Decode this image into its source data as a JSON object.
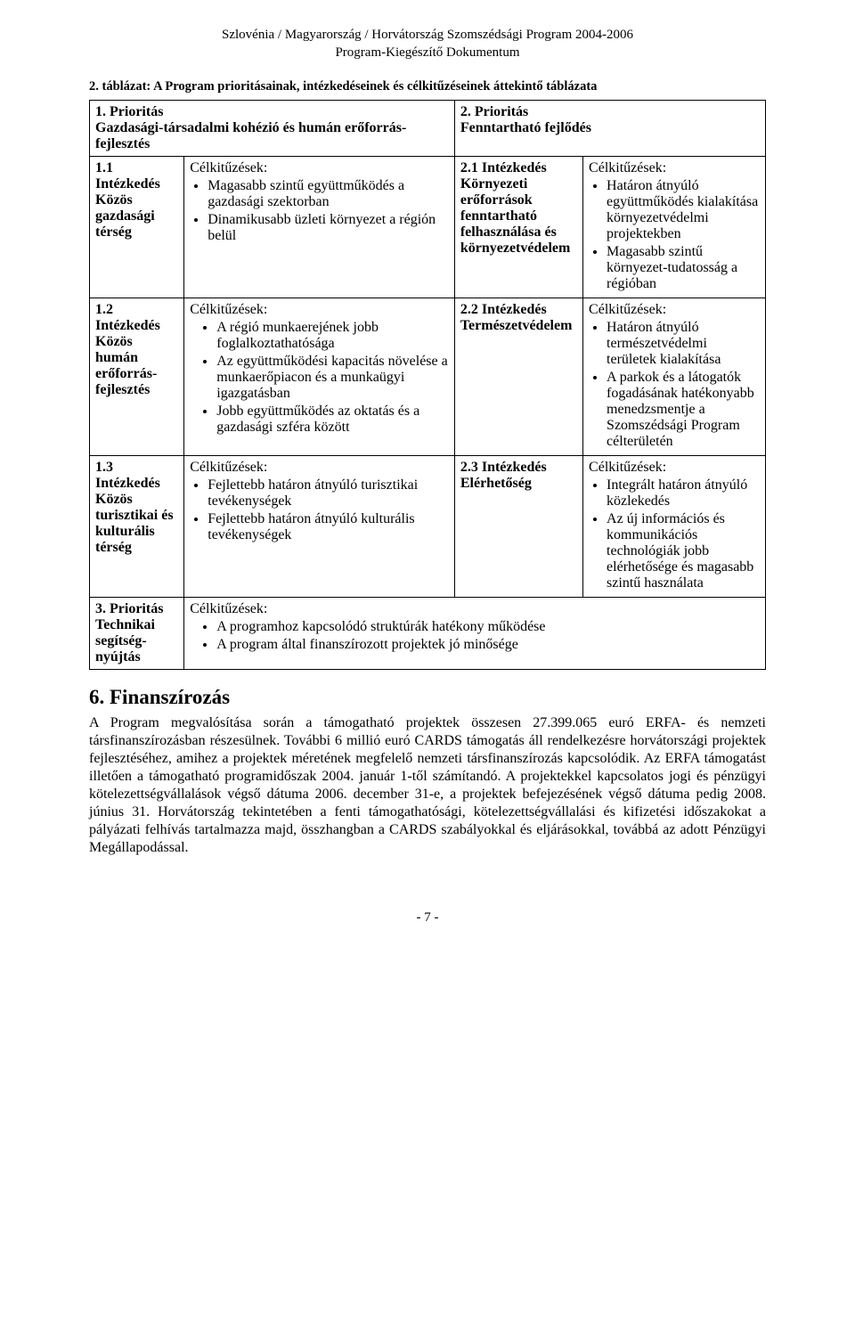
{
  "header": {
    "line1": "Szlovénia / Magyarország / Horvátország Szomszédsági Program 2004-2006",
    "line2": "Program-Kiegészítő Dokumentum"
  },
  "table_caption": "2. táblázat: A Program prioritásainak, intézkedéseinek és célkitűzéseinek áttekintő táblázata",
  "priority1": {
    "title": "1. Prioritás",
    "subtitle": "Gazdasági-társadalmi kohézió és humán erőforrás-fejlesztés"
  },
  "priority2": {
    "title": "2. Prioritás",
    "subtitle": "Fenntartható fejlődés"
  },
  "row11": {
    "left_title": "1.1 Intézkedés Közös gazdasági térség",
    "obj_label": "Célkitűzések:",
    "items": [
      "Magasabb szintű együttműködés a gazdasági szektorban",
      "Dinamikusabb üzleti környezet a régión belül"
    ],
    "right_title": "2.1 Intézkedés Környezeti erőforrások fenntartható felhasználása és környezetvédelem",
    "right_obj_label": "Célkitűzések:",
    "right_items": [
      "Határon átnyúló együttműködés kialakítása környezetvédelmi projektekben",
      "Magasabb szintű környezet-tudatosság a régióban"
    ]
  },
  "row12": {
    "left_title": "1.2 Intézkedés Közös humán erőforrás-fejlesztés",
    "obj_label": "Célkitűzések:",
    "items": [
      "A régió munkaerejének jobb foglalkoztathatósága",
      "Az együttműködési kapacitás növelése a munkaerőpiacon és a munkaügyi igazgatásban",
      "Jobb együttműködés az oktatás és a gazdasági szféra között"
    ],
    "right_title": "2.2 Intézkedés Természetvédelem",
    "right_obj_label": "Célkitűzések:",
    "right_items": [
      "Határon átnyúló természetvédelmi területek kialakítása",
      "A parkok és a látogatók fogadásának hatékonyabb menedzsmentje a Szomszédsági Program célterületén"
    ]
  },
  "row13": {
    "left_title": "1.3 Intézkedés Közös turisztikai és kulturális térség",
    "obj_label": "Célkitűzések:",
    "items": [
      "Fejlettebb határon átnyúló turisztikai tevékenységek",
      "Fejlettebb határon átnyúló kulturális tevékenységek"
    ],
    "right_title": "2.3 Intézkedés Elérhetőség",
    "right_obj_label": "Célkitűzések:",
    "right_items": [
      "Integrált határon átnyúló közlekedés",
      "Az új információs és kommunikációs technológiák jobb elérhetősége és magasabb szintű használata"
    ]
  },
  "row3": {
    "left_title": "3. Prioritás Technikai segítség-nyújtás",
    "obj_label": "Célkitűzések:",
    "items": [
      "A programhoz kapcsolódó struktúrák hatékony működése",
      "A program által finanszírozott projektek jó minősége"
    ]
  },
  "section6": {
    "title": "6. Finanszírozás",
    "body": "A Program megvalósítása során a támogatható projektek összesen 27.399.065 euró ERFA- és nemzeti társfinanszírozásban részesülnek. További 6 millió euró CARDS támogatás áll rendelkezésre horvátországi projektek fejlesztéséhez, amihez a projektek méretének megfelelő nemzeti társfinanszírozás kapcsolódik. Az ERFA támogatást illetően a támogatható programidőszak 2004. január 1-től számítandó. A projektekkel kapcsolatos jogi és pénzügyi kötelezettségvállalások végső dátuma 2006. december 31-e, a projektek befejezésének végső dátuma pedig 2008. június 31. Horvátország tekintetében a fenti támogathatósági, kötelezettségvállalási és kifizetési időszakokat a pályázati felhívás tartalmazza majd, összhangban a CARDS szabályokkal és eljárásokkal, továbbá az adott Pénzügyi Megállapodással."
  },
  "page_number": "- 7 -"
}
